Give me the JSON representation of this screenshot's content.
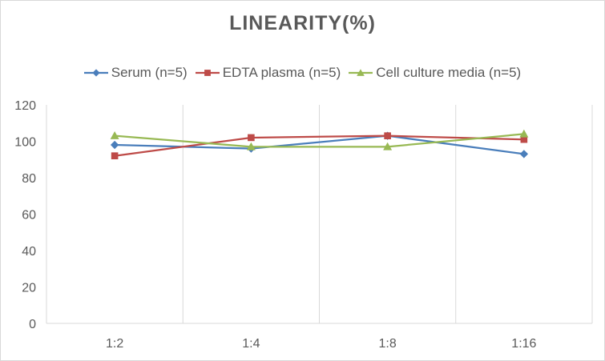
{
  "chart_data": {
    "type": "line",
    "title": "LINEARITY(%)",
    "xlabel": "",
    "ylabel": "",
    "categories": [
      "1:2",
      "1:4",
      "1:8",
      "1:16"
    ],
    "ylim": [
      0,
      120
    ],
    "yticks": [
      0,
      20,
      40,
      60,
      80,
      100,
      120
    ],
    "grid": "vertical",
    "legend_position": "top",
    "series": [
      {
        "name": "Serum (n=5)",
        "values": [
          98,
          96,
          103,
          93
        ],
        "color": "#4a7ebb",
        "marker": "diamond"
      },
      {
        "name": "EDTA plasma (n=5)",
        "values": [
          92,
          102,
          103,
          101
        ],
        "color": "#be4b48",
        "marker": "square"
      },
      {
        "name": "Cell culture media (n=5)",
        "values": [
          103,
          97,
          97,
          104
        ],
        "color": "#98b954",
        "marker": "triangle"
      }
    ]
  }
}
